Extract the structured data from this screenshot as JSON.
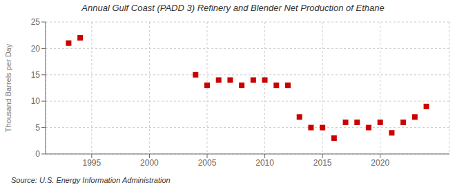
{
  "chart_data": {
    "type": "scatter",
    "title": "Annual Gulf Coast (PADD 3) Refinery and Blender Net Production of Ethane",
    "y_label": "Thousand Barrels per Day",
    "annotations": [
      "Source: U.S. Energy Information Administration"
    ],
    "x": [
      1993,
      1994,
      2004,
      2005,
      2006,
      2007,
      2008,
      2009,
      2010,
      2011,
      2012,
      2013,
      2014,
      2015,
      2016,
      2017,
      2018,
      2019,
      2020,
      2021,
      2022,
      2023,
      2024
    ],
    "values": [
      21.0,
      22.0,
      15.0,
      13.0,
      14.0,
      14.0,
      13.0,
      14.0,
      14.0,
      13.0,
      13.0,
      7.0,
      5.0,
      5.0,
      3.0,
      6.0,
      6.0,
      5.0,
      6.0,
      4.0,
      6.0,
      7.0,
      9.0
    ],
    "color": "#cc0000",
    "marker": "square",
    "xlim": [
      1991,
      2026
    ],
    "xticks": [
      1995,
      2000,
      2005,
      2010,
      2015,
      2020
    ],
    "ylim": [
      0,
      25
    ],
    "yticks": [
      0,
      5,
      10,
      15,
      20,
      25
    ],
    "grid": true
  }
}
